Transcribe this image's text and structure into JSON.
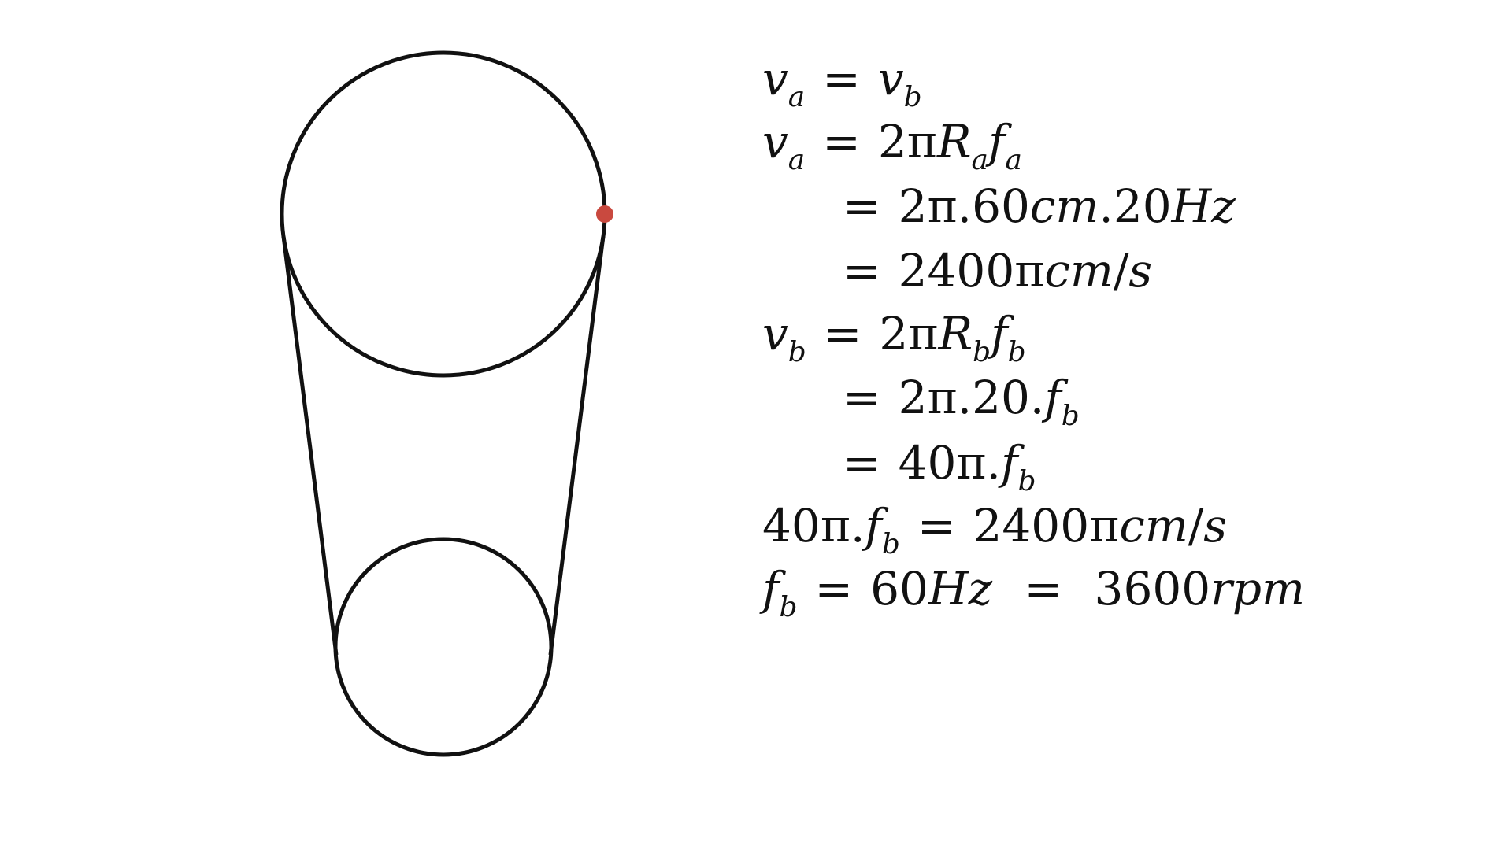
{
  "colors": {
    "background": "#ffffff",
    "ink": "#111111",
    "marker": "#c9493f"
  },
  "equations": [
    {
      "lhs": "v_a",
      "sign": "=",
      "rhs": "v_b"
    },
    {
      "lhs": "v_a",
      "sign": "=",
      "rhs": "2πR_af_a"
    },
    {
      "lhs": "",
      "sign": "=",
      "rhs": "2π.60cm.20Hz"
    },
    {
      "lhs": "",
      "sign": "=",
      "rhs": "2400πcm/s"
    },
    {
      "lhs": "v_b",
      "sign": "=",
      "rhs": "2πR_bf_b"
    },
    {
      "lhs": "",
      "sign": "=",
      "rhs": "2π.20.f_b"
    },
    {
      "lhs": "",
      "sign": "=",
      "rhs": "40π.f_b"
    },
    {
      "lhs": "40π.f_b",
      "sign": "=",
      "rhs": "2400πcm/s"
    },
    {
      "lhs": "f_b",
      "sign": "=",
      "rhs": "60Hz = 3600rpm"
    }
  ]
}
